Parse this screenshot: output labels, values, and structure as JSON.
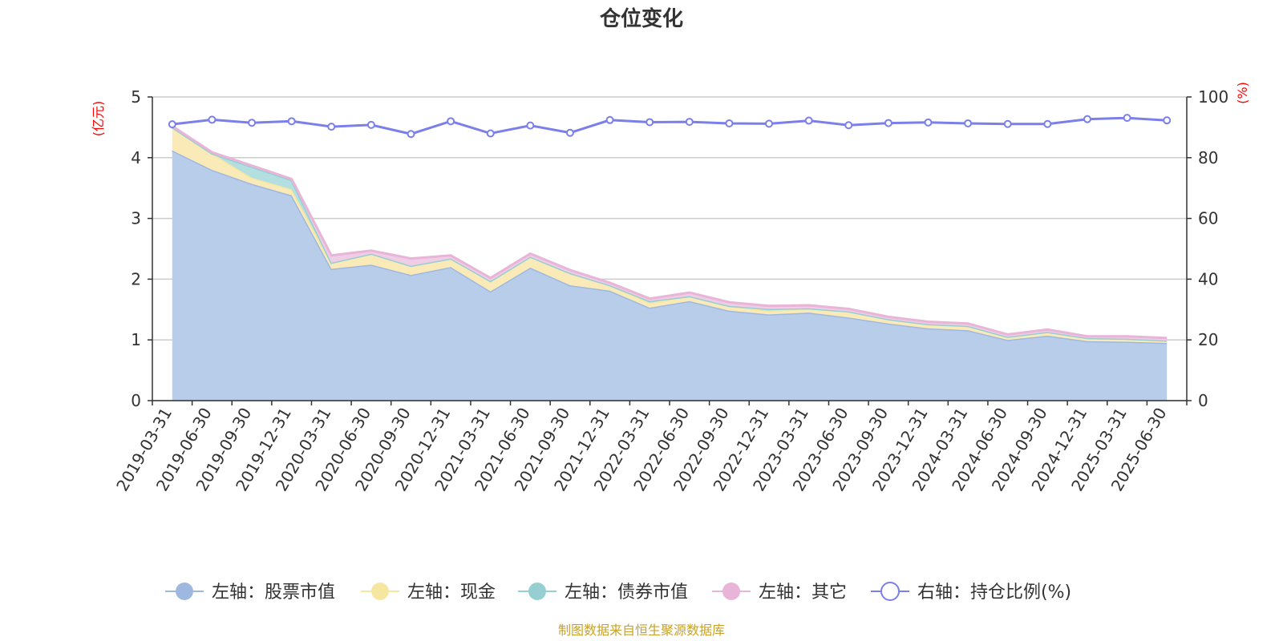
{
  "chart_data": {
    "type": "area",
    "title": "仓位变化",
    "left_unit": "(亿元)",
    "right_unit": "(%)",
    "left_ylim": [
      0,
      5
    ],
    "left_ticks": [
      "0",
      "1",
      "2",
      "3",
      "4",
      "5"
    ],
    "right_ylim": [
      0,
      100
    ],
    "right_ticks": [
      "0",
      "20",
      "40",
      "60",
      "80",
      "100"
    ],
    "categories": [
      "2019-03-31",
      "2019-06-30",
      "2019-09-30",
      "2019-12-31",
      "2020-03-31",
      "2020-06-30",
      "2020-09-30",
      "2020-12-31",
      "2021-03-31",
      "2021-06-30",
      "2021-09-30",
      "2021-12-31",
      "2022-03-31",
      "2022-06-30",
      "2022-09-30",
      "2022-12-31",
      "2023-03-31",
      "2023-06-30",
      "2023-09-30",
      "2023-12-31",
      "2024-03-31",
      "2024-06-30",
      "2024-09-30",
      "2024-12-31",
      "2025-03-31",
      "2025-06-30"
    ],
    "series": [
      {
        "name": "左轴：股票市值",
        "axis": "left",
        "color": "#9fb8e0",
        "fill": "#b8cdea",
        "values": [
          4.12,
          3.8,
          3.57,
          3.38,
          2.17,
          2.24,
          2.07,
          2.2,
          1.8,
          2.19,
          1.9,
          1.81,
          1.53,
          1.64,
          1.48,
          1.42,
          1.45,
          1.37,
          1.27,
          1.19,
          1.16,
          1.0,
          1.07,
          0.98,
          0.97,
          0.95
        ]
      },
      {
        "name": "左轴：现金",
        "axis": "left",
        "color": "#f5e6a0",
        "fill": "#faeab8",
        "values": [
          0.38,
          0.27,
          0.1,
          0.1,
          0.1,
          0.18,
          0.15,
          0.14,
          0.17,
          0.18,
          0.2,
          0.09,
          0.08,
          0.08,
          0.08,
          0.06,
          0.07,
          0.1,
          0.07,
          0.07,
          0.07,
          0.05,
          0.06,
          0.05,
          0.05,
          0.04
        ]
      },
      {
        "name": "左轴：债券市值",
        "axis": "left",
        "color": "#96cfd2",
        "fill": "#b3dfe0",
        "values": [
          0,
          0,
          0.18,
          0.15,
          0,
          0,
          0,
          0,
          0,
          0,
          0,
          0,
          0.03,
          0,
          0,
          0.03,
          0,
          0,
          0,
          0,
          0,
          0,
          0,
          0,
          0,
          0
        ]
      },
      {
        "name": "左轴：其它",
        "axis": "left",
        "color": "#e8b4d8",
        "fill": "#f0cde6",
        "values": [
          0.02,
          0.02,
          0.02,
          0.02,
          0.12,
          0.05,
          0.12,
          0.05,
          0.05,
          0.05,
          0.05,
          0.04,
          0.04,
          0.06,
          0.06,
          0.05,
          0.05,
          0.04,
          0.04,
          0.04,
          0.04,
          0.04,
          0.04,
          0.03,
          0.04,
          0.04
        ]
      },
      {
        "name": "右轴：持仓比例(%)",
        "axis": "right",
        "color": "#7b7fea",
        "values": [
          91.0,
          92.5,
          91.5,
          92.0,
          90.2,
          90.8,
          87.8,
          92.0,
          88.0,
          90.6,
          88.2,
          92.4,
          91.7,
          91.8,
          91.3,
          91.2,
          92.2,
          90.7,
          91.4,
          91.6,
          91.3,
          91.1,
          91.1,
          92.7,
          93.1,
          92.3
        ]
      }
    ],
    "grid": true,
    "legend_position": "bottom",
    "source": "制图数据来自恒生聚源数据库"
  }
}
